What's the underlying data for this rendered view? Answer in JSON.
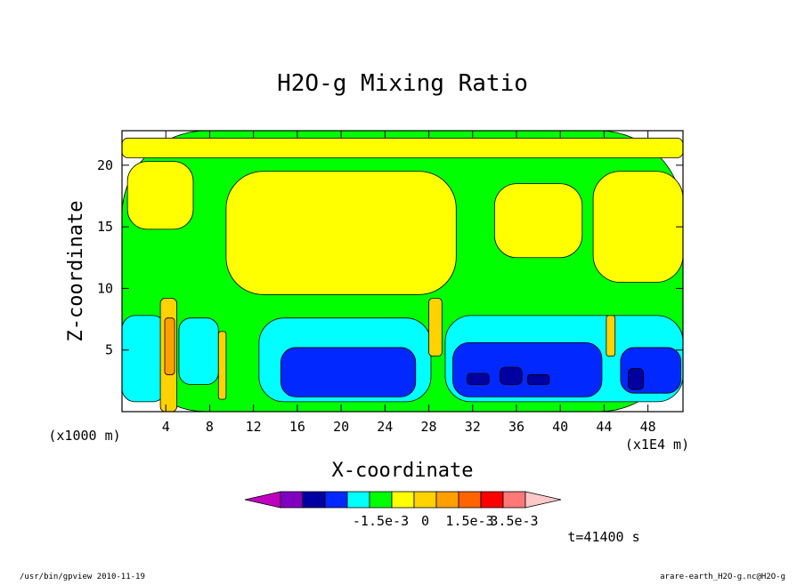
{
  "chart_data": {
    "type": "heatmap",
    "title": "H2O-g Mixing Ratio",
    "xlabel": "X-coordinate",
    "ylabel": "Z-coordinate",
    "xunit": "(x1000 m)",
    "xscale": "(x1E4 m)",
    "x_ticks": [
      "4",
      "8",
      "12",
      "16",
      "20",
      "24",
      "28",
      "32",
      "36",
      "40",
      "44",
      "48"
    ],
    "x_tick_values": [
      4,
      8,
      12,
      16,
      20,
      24,
      28,
      32,
      36,
      40,
      44,
      48
    ],
    "xlim": [
      0,
      51.2
    ],
    "y_ticks": [
      "5",
      "10",
      "15",
      "20"
    ],
    "y_tick_values": [
      5,
      10,
      15,
      20
    ],
    "ylim": [
      0,
      22.8
    ],
    "colorbar": {
      "colors": [
        "#c000c0",
        "#8000c0",
        "#0000a0",
        "#0028ff",
        "#00ffff",
        "#00ff00",
        "#ffff00",
        "#ffd200",
        "#ffa000",
        "#ff6400",
        "#ff0000",
        "#ff7878",
        "#ffc8c8"
      ],
      "labels": [
        "-1.5e-3",
        "0",
        "1.5e-3",
        "3.5e-3"
      ],
      "label_positions": [
        4.5,
        6.5,
        8.5,
        10.5
      ]
    },
    "regions": [
      {
        "level": 5,
        "x0": 0,
        "x1": 51.2,
        "z0": 0,
        "z1": 22.8
      },
      {
        "level": 6,
        "x0": 0.5,
        "x1": 6.5,
        "z0": 14.8,
        "z1": 20.3
      },
      {
        "level": 6,
        "x0": 9.5,
        "x1": 30.5,
        "z0": 9.5,
        "z1": 19.5
      },
      {
        "level": 6,
        "x0": 34,
        "x1": 42,
        "z0": 12.5,
        "z1": 18.5
      },
      {
        "level": 6,
        "x0": 43,
        "x1": 51.2,
        "z0": 10.5,
        "z1": 19.5
      },
      {
        "level": 6,
        "x0": 0,
        "x1": 51.2,
        "z0": 20.6,
        "z1": 22.2
      },
      {
        "level": 4,
        "x0": 0,
        "x1": 4,
        "z0": 0.8,
        "z1": 7.8
      },
      {
        "level": 4,
        "x0": 5.2,
        "x1": 8.8,
        "z0": 2.2,
        "z1": 7.6
      },
      {
        "level": 4,
        "x0": 12.5,
        "x1": 28.2,
        "z0": 0.8,
        "z1": 7.6
      },
      {
        "level": 4,
        "x0": 29.5,
        "x1": 51.2,
        "z0": 0.8,
        "z1": 7.8
      },
      {
        "level": 3,
        "x0": 14.5,
        "x1": 26.8,
        "z0": 1.2,
        "z1": 5.2
      },
      {
        "level": 3,
        "x0": 30.2,
        "x1": 43.8,
        "z0": 1.2,
        "z1": 5.6
      },
      {
        "level": 3,
        "x0": 45.5,
        "x1": 51,
        "z0": 1.5,
        "z1": 5.2
      },
      {
        "level": 2,
        "x0": 31.5,
        "x1": 33.5,
        "z0": 2.2,
        "z1": 3.1
      },
      {
        "level": 2,
        "x0": 34.5,
        "x1": 36.5,
        "z0": 2.2,
        "z1": 3.6
      },
      {
        "level": 2,
        "x0": 37,
        "x1": 39,
        "z0": 2.2,
        "z1": 3.0
      },
      {
        "level": 2,
        "x0": 46.2,
        "x1": 47.6,
        "z0": 1.8,
        "z1": 3.5
      },
      {
        "level": 7,
        "x0": 3.5,
        "x1": 5,
        "z0": 0,
        "z1": 9.2
      },
      {
        "level": 8,
        "x0": 3.9,
        "x1": 4.8,
        "z0": 3,
        "z1": 7.6
      },
      {
        "level": 7,
        "x0": 28,
        "x1": 29.2,
        "z0": 4.5,
        "z1": 9.2
      },
      {
        "level": 7,
        "x0": 44.2,
        "x1": 45,
        "z0": 4.5,
        "z1": 7.8
      },
      {
        "level": 7,
        "x0": 8.8,
        "x1": 9.5,
        "z0": 1,
        "z1": 6.5
      }
    ]
  },
  "footer": {
    "time": "t=41400 s",
    "left": "/usr/bin/gpview   2010-11-19",
    "right": "arare-earth_H2O-g.nc@H2O-g"
  }
}
